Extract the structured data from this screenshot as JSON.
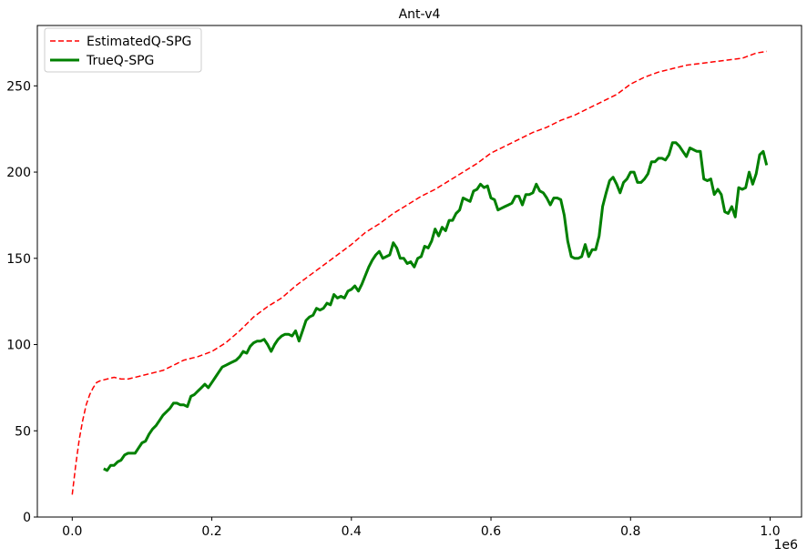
{
  "chart_data": {
    "type": "line",
    "title": "Ant-v4",
    "xlabel": "",
    "ylabel": "",
    "x_offset_label": "1e6",
    "xlim": [
      -0.05,
      1.045
    ],
    "ylim": [
      0,
      285
    ],
    "x_ticks": [
      0.0,
      0.2,
      0.4,
      0.6,
      0.8,
      1.0
    ],
    "x_tick_labels": [
      "0.0",
      "0.2",
      "0.4",
      "0.6",
      "0.8",
      "1.0"
    ],
    "y_ticks": [
      0,
      50,
      100,
      150,
      200,
      250
    ],
    "y_tick_labels": [
      "0",
      "50",
      "100",
      "150",
      "200",
      "250"
    ],
    "grid": false,
    "legend_position": "upper-left",
    "series": [
      {
        "name": "EstimatedQ-SPG",
        "color": "#ff0000",
        "style": "dashed",
        "x": [
          0.0,
          0.005,
          0.01,
          0.015,
          0.02,
          0.025,
          0.03,
          0.035,
          0.04,
          0.05,
          0.06,
          0.07,
          0.08,
          0.09,
          0.1,
          0.11,
          0.12,
          0.13,
          0.14,
          0.15,
          0.16,
          0.18,
          0.2,
          0.22,
          0.24,
          0.26,
          0.28,
          0.3,
          0.32,
          0.34,
          0.36,
          0.38,
          0.4,
          0.42,
          0.44,
          0.46,
          0.48,
          0.5,
          0.52,
          0.54,
          0.56,
          0.58,
          0.6,
          0.62,
          0.64,
          0.66,
          0.68,
          0.7,
          0.72,
          0.74,
          0.76,
          0.78,
          0.8,
          0.82,
          0.84,
          0.86,
          0.88,
          0.9,
          0.92,
          0.94,
          0.96,
          0.98,
          0.995
        ],
        "values": [
          13,
          30,
          45,
          56,
          65,
          71,
          75,
          78,
          79,
          80,
          81,
          80,
          80,
          81,
          82,
          83,
          84,
          85,
          87,
          89,
          91,
          93,
          96,
          101,
          108,
          116,
          122,
          127,
          134,
          140,
          146,
          152,
          158,
          165,
          170,
          176,
          181,
          186,
          190,
          195,
          200,
          205,
          211,
          215,
          219,
          223,
          226,
          230,
          233,
          237,
          241,
          245,
          251,
          255,
          258,
          260,
          262,
          263,
          264,
          265,
          266,
          269,
          270
        ]
      },
      {
        "name": "TrueQ-SPG",
        "color": "#008000",
        "style": "solid",
        "x": [
          0.045,
          0.05,
          0.055,
          0.06,
          0.065,
          0.07,
          0.075,
          0.08,
          0.085,
          0.09,
          0.095,
          0.1,
          0.105,
          0.11,
          0.115,
          0.12,
          0.125,
          0.13,
          0.135,
          0.14,
          0.145,
          0.15,
          0.155,
          0.16,
          0.165,
          0.17,
          0.175,
          0.18,
          0.185,
          0.19,
          0.195,
          0.2,
          0.205,
          0.21,
          0.215,
          0.22,
          0.225,
          0.23,
          0.235,
          0.24,
          0.245,
          0.25,
          0.255,
          0.26,
          0.265,
          0.27,
          0.275,
          0.28,
          0.285,
          0.29,
          0.295,
          0.3,
          0.305,
          0.31,
          0.315,
          0.32,
          0.325,
          0.33,
          0.335,
          0.34,
          0.345,
          0.35,
          0.355,
          0.36,
          0.365,
          0.37,
          0.375,
          0.38,
          0.385,
          0.39,
          0.395,
          0.4,
          0.405,
          0.41,
          0.415,
          0.42,
          0.425,
          0.43,
          0.435,
          0.44,
          0.445,
          0.45,
          0.455,
          0.46,
          0.465,
          0.47,
          0.475,
          0.48,
          0.485,
          0.49,
          0.495,
          0.5,
          0.505,
          0.51,
          0.515,
          0.52,
          0.525,
          0.53,
          0.535,
          0.54,
          0.545,
          0.55,
          0.555,
          0.56,
          0.565,
          0.57,
          0.575,
          0.58,
          0.585,
          0.59,
          0.595,
          0.6,
          0.605,
          0.61,
          0.615,
          0.62,
          0.625,
          0.63,
          0.635,
          0.64,
          0.645,
          0.65,
          0.655,
          0.66,
          0.665,
          0.67,
          0.675,
          0.68,
          0.685,
          0.69,
          0.695,
          0.7,
          0.705,
          0.71,
          0.715,
          0.72,
          0.725,
          0.73,
          0.735,
          0.74,
          0.745,
          0.75,
          0.755,
          0.76,
          0.765,
          0.77,
          0.775,
          0.78,
          0.785,
          0.79,
          0.795,
          0.8,
          0.805,
          0.81,
          0.815,
          0.82,
          0.825,
          0.83,
          0.835,
          0.84,
          0.845,
          0.85,
          0.855,
          0.86,
          0.865,
          0.87,
          0.875,
          0.88,
          0.885,
          0.89,
          0.895,
          0.9,
          0.905,
          0.91,
          0.915,
          0.92,
          0.925,
          0.93,
          0.935,
          0.94,
          0.945,
          0.95,
          0.955,
          0.96,
          0.965,
          0.97,
          0.975,
          0.98,
          0.985,
          0.99,
          0.995
        ],
        "values": [
          28,
          27,
          30,
          30,
          32,
          33,
          36,
          37,
          37,
          37,
          40,
          43,
          44,
          48,
          51,
          53,
          56,
          59,
          61,
          63,
          66,
          66,
          65,
          65,
          64,
          70,
          71,
          73,
          75,
          77,
          75,
          78,
          81,
          84,
          87,
          88,
          89,
          90,
          91,
          93,
          96,
          95,
          99,
          101,
          102,
          102,
          103,
          100,
          96,
          100,
          103,
          105,
          106,
          106,
          105,
          108,
          102,
          108,
          114,
          116,
          117,
          121,
          120,
          121,
          124,
          123,
          129,
          127,
          128,
          127,
          131,
          132,
          134,
          131,
          135,
          140,
          145,
          149,
          152,
          154,
          150,
          151,
          152,
          159,
          156,
          150,
          150,
          147,
          148,
          145,
          150,
          151,
          157,
          156,
          160,
          167,
          163,
          168,
          166,
          172,
          172,
          176,
          178,
          185,
          184,
          183,
          189,
          190,
          193,
          191,
          192,
          185,
          184,
          178,
          179,
          180,
          181,
          182,
          186,
          186,
          181,
          187,
          187,
          188,
          193,
          189,
          188,
          185,
          181,
          185,
          185,
          184,
          175,
          160,
          151,
          150,
          150,
          151,
          158,
          151,
          155,
          155,
          163,
          180,
          188,
          195,
          197,
          193,
          188,
          194,
          196,
          200,
          200,
          194,
          194,
          196,
          199,
          206,
          206,
          208,
          208,
          207,
          210,
          217,
          217,
          215,
          212,
          209,
          214,
          213,
          212,
          212,
          196,
          195,
          196,
          187,
          190,
          187,
          177,
          176,
          180,
          174,
          191,
          190,
          191,
          200,
          193,
          199,
          210,
          212,
          204
        ]
      }
    ]
  }
}
